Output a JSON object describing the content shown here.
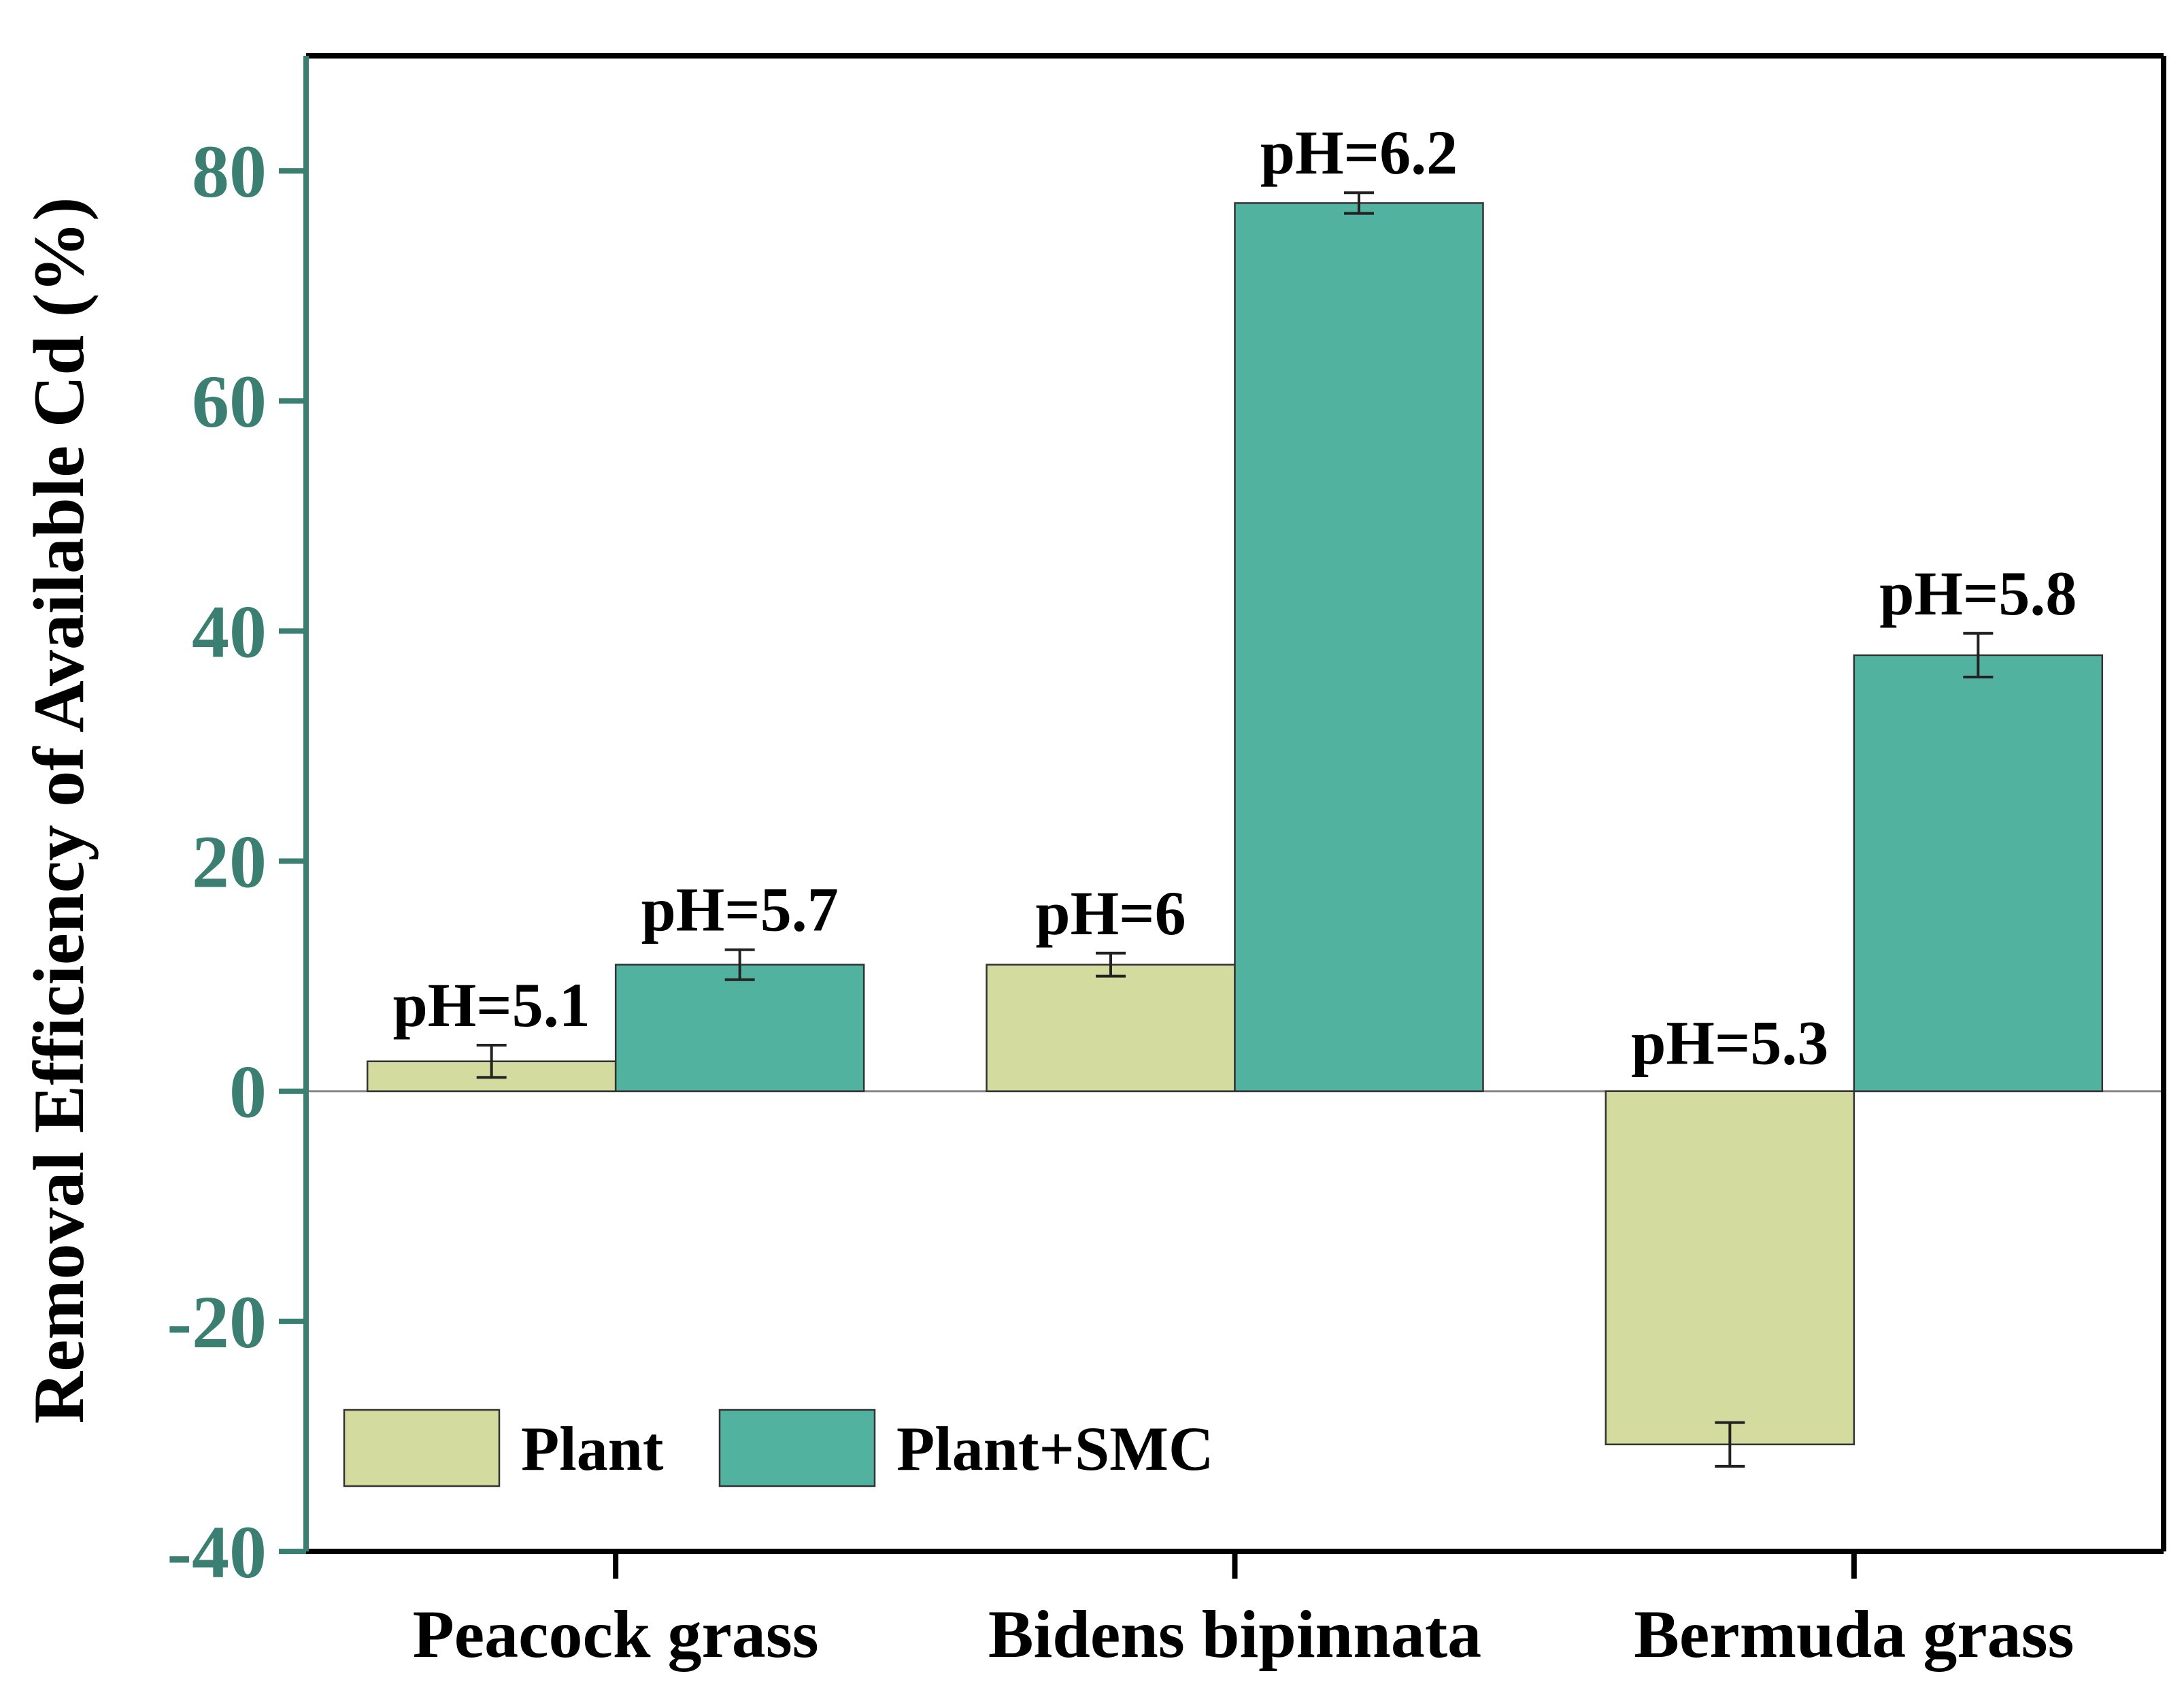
{
  "chart_data": {
    "type": "bar",
    "title": "",
    "xlabel": "",
    "ylabel": "Removal Efficiency of Available Cd (%)",
    "ylim": [
      -40,
      90
    ],
    "yticks": [
      -40,
      -20,
      0,
      20,
      40,
      60,
      80
    ],
    "categories": [
      "Peacock grass",
      "Bidens bipinnata",
      "Bermuda grass"
    ],
    "series": [
      {
        "name": "Plant",
        "color": "#d3db9e",
        "values": [
          2.6,
          11.0,
          -30.7
        ],
        "errors": [
          1.4,
          1.0,
          1.9
        ],
        "labels": [
          "pH=5.1",
          "pH=6",
          "pH=5.3"
        ]
      },
      {
        "name": "Plant+SMC",
        "color": "#52b2a0",
        "values": [
          11.0,
          77.2,
          37.9
        ],
        "errors": [
          1.3,
          0.9,
          1.9
        ],
        "labels": [
          "pH=5.7",
          "pH=6.2",
          "pH=5.8"
        ]
      }
    ],
    "legend_position": "bottom-left",
    "axis_color": "#3a7f72"
  }
}
